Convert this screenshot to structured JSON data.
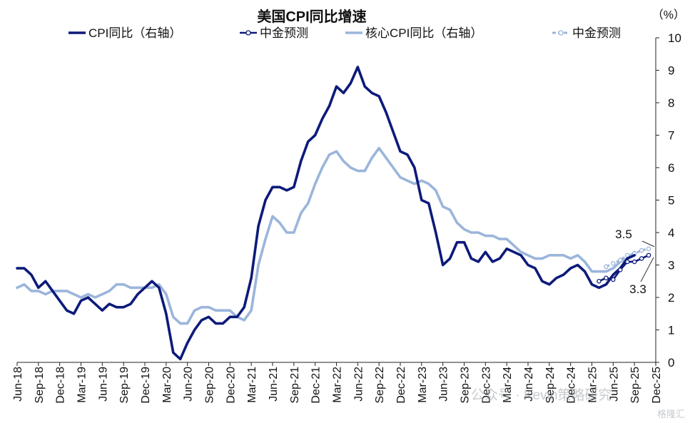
{
  "chart_data": {
    "type": "line",
    "title": "美国CPI同比增速",
    "unit_label": "（%）",
    "y_axis": {
      "position": "right",
      "min": 0,
      "max": 10,
      "ticks": [
        0,
        1,
        2,
        3,
        4,
        5,
        6,
        7,
        8,
        9,
        10
      ]
    },
    "x_ticks": [
      "Jun-18",
      "Sep-18",
      "Dec-18",
      "Mar-19",
      "Jun-19",
      "Sep-19",
      "Dec-19",
      "Mar-20",
      "Jun-20",
      "Sep-20",
      "Dec-20",
      "Mar-21",
      "Jun-21",
      "Sep-21",
      "Dec-21",
      "Mar-22",
      "Jun-22",
      "Sep-22",
      "Dec-22",
      "Mar-23",
      "Jun-23",
      "Sep-23",
      "Dec-23",
      "Mar-24",
      "Jun-24",
      "Sep-24",
      "Dec-24",
      "Mar-25",
      "Jun-25",
      "Sep-25",
      "Dec-25"
    ],
    "series": [
      {
        "name": "CPI同比（右轴）",
        "color": "#0d1a7a",
        "style": "solid-thick",
        "start_index": 0,
        "values": [
          2.9,
          2.9,
          2.7,
          2.3,
          2.5,
          2.2,
          1.9,
          1.6,
          1.5,
          1.9,
          2.0,
          1.8,
          1.6,
          1.8,
          1.7,
          1.7,
          1.8,
          2.1,
          2.3,
          2.5,
          2.3,
          1.5,
          0.3,
          0.1,
          0.6,
          1.0,
          1.3,
          1.4,
          1.2,
          1.2,
          1.4,
          1.4,
          1.7,
          2.6,
          4.2,
          5.0,
          5.4,
          5.4,
          5.3,
          5.4,
          6.2,
          6.8,
          7.0,
          7.5,
          7.9,
          8.5,
          8.3,
          8.6,
          9.1,
          8.5,
          8.3,
          8.2,
          7.7,
          7.1,
          6.5,
          6.4,
          6.0,
          5.0,
          4.9,
          4.0,
          3.0,
          3.2,
          3.7,
          3.7,
          3.2,
          3.1,
          3.4,
          3.1,
          3.2,
          3.5,
          3.4,
          3.3,
          3.0,
          2.9,
          2.5,
          2.4,
          2.6,
          2.7,
          2.9,
          3.0,
          2.8,
          2.4,
          2.3,
          2.4,
          2.7,
          2.9,
          3.2,
          3.3
        ]
      },
      {
        "name": "中金预测",
        "color": "#0d1a7a",
        "style": "solid-markers",
        "start_index": 82,
        "values": [
          2.5,
          2.6,
          2.55,
          2.85,
          3.1,
          3.1,
          3.2,
          3.3
        ]
      },
      {
        "name": "核心CPI同比（右轴）",
        "color": "#9bb5db",
        "style": "solid-thick",
        "start_index": 0,
        "values": [
          2.3,
          2.4,
          2.2,
          2.2,
          2.1,
          2.2,
          2.2,
          2.2,
          2.1,
          2.0,
          2.1,
          2.0,
          2.1,
          2.2,
          2.4,
          2.4,
          2.3,
          2.3,
          2.3,
          2.3,
          2.4,
          2.1,
          1.4,
          1.2,
          1.2,
          1.6,
          1.7,
          1.7,
          1.6,
          1.6,
          1.6,
          1.4,
          1.3,
          1.6,
          3.0,
          3.8,
          4.5,
          4.3,
          4.0,
          4.0,
          4.6,
          4.9,
          5.5,
          6.0,
          6.4,
          6.5,
          6.2,
          6.0,
          5.9,
          5.9,
          6.3,
          6.6,
          6.3,
          6.0,
          5.7,
          5.6,
          5.5,
          5.6,
          5.5,
          5.3,
          4.8,
          4.7,
          4.3,
          4.1,
          4.0,
          4.0,
          3.9,
          3.9,
          3.8,
          3.8,
          3.6,
          3.4,
          3.3,
          3.2,
          3.2,
          3.3,
          3.3,
          3.3,
          3.2,
          3.3,
          3.1,
          2.8,
          2.8,
          2.8,
          2.9,
          3.1,
          3.2,
          3.4
        ]
      },
      {
        "name": "中金预测",
        "color": "#9bb5db",
        "style": "dashed-markers",
        "start_index": 83,
        "values": [
          2.95,
          3.05,
          3.15,
          3.3,
          3.35,
          3.45,
          3.5
        ]
      }
    ],
    "annotations": [
      {
        "text": "3.5",
        "value": 3.5,
        "placement": "above-end"
      },
      {
        "text": "3.3",
        "value": 3.3,
        "placement": "below-end"
      }
    ],
    "legend_position": "top",
    "grid": false
  },
  "watermark": {
    "text": "公众号 · Kevin策略研究",
    "logo_text": "格隆汇"
  }
}
